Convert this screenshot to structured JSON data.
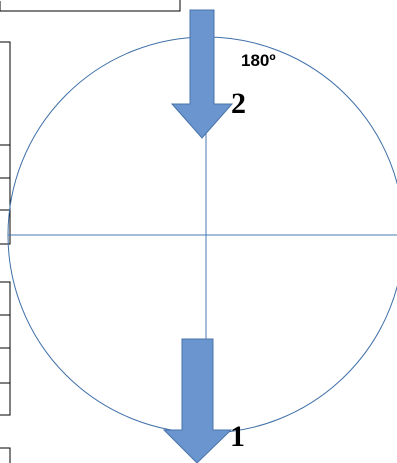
{
  "diagram": {
    "angle_label": "180º",
    "arrow_top_label": "2",
    "arrow_bottom_label": "1",
    "colors": {
      "circle_stroke": "#3f6fa8",
      "axis_stroke": "#4a7ab5",
      "arrow_fill": "#6a95cf",
      "arrow_stroke": "#4a74aa",
      "frame_stroke": "#000000",
      "label_text": "#000000"
    }
  }
}
